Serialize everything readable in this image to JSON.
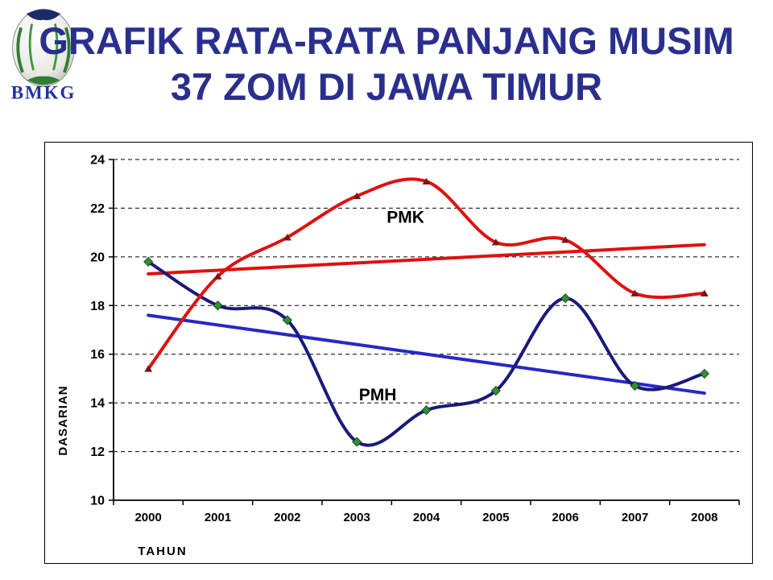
{
  "slide": {
    "title_line1": "GRAFIK RATA-RATA PANJANG MUSIM",
    "title_line2": "37 ZOM DI JAWA TIMUR",
    "title_color": "#2A2F8D"
  },
  "logo": {
    "text": "BMKG"
  },
  "chart_data": {
    "type": "line",
    "title": "",
    "xlabel": "TAHUN",
    "ylabel": "DASARIAN",
    "categories": [
      2000,
      2001,
      2002,
      2003,
      2004,
      2005,
      2006,
      2007,
      2008
    ],
    "ylim": [
      10,
      24
    ],
    "ytick_step": 2,
    "grid": "dashed-horizontal",
    "legend_position": "none",
    "series": [
      {
        "name": "PMK trend",
        "type": "trend",
        "color": "#E01010",
        "width": 4,
        "values": [
          19.3,
          20.5
        ]
      },
      {
        "name": "PMH trend",
        "type": "trend",
        "color": "#2628C8",
        "width": 4,
        "values": [
          17.6,
          14.4
        ]
      },
      {
        "name": "PMH",
        "type": "smooth",
        "color": "#1A1A78",
        "width": 4,
        "marker": "diamond",
        "marker_color": "#2F8F2F",
        "values": [
          19.8,
          18.0,
          17.4,
          12.4,
          13.7,
          14.5,
          18.3,
          14.7,
          15.2
        ]
      },
      {
        "name": "PMK",
        "type": "smooth",
        "color": "#E01010",
        "width": 4,
        "marker": "triangle",
        "marker_color": "#7B1414",
        "values": [
          15.4,
          19.2,
          20.8,
          22.5,
          23.1,
          20.6,
          20.7,
          18.5,
          18.5
        ]
      }
    ],
    "annotations": [
      {
        "text": "PMK",
        "x_index": 3.7,
        "y": 21.4
      },
      {
        "text": "PMH",
        "x_index": 3.3,
        "y": 14.1
      }
    ]
  }
}
